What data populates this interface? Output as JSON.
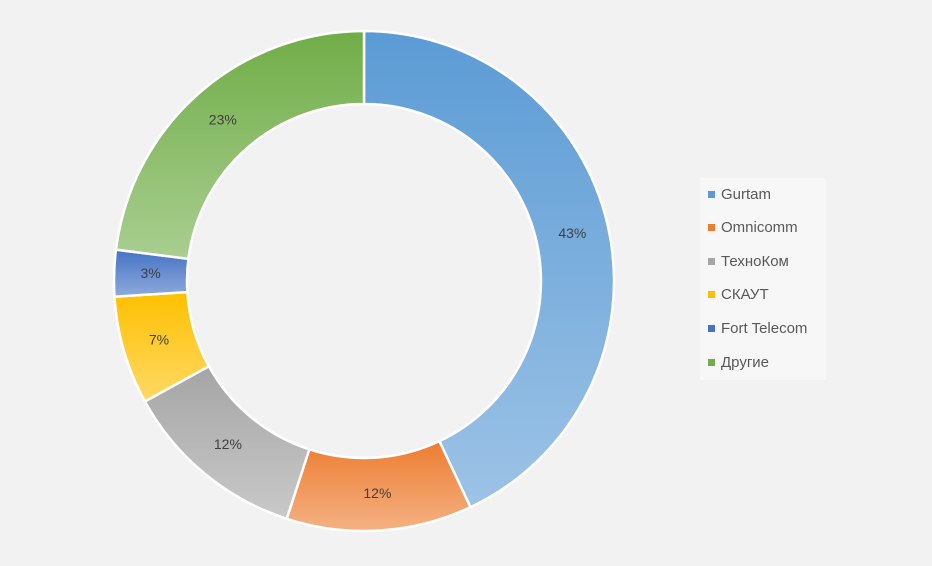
{
  "chart_data": {
    "type": "pie",
    "variant": "donut",
    "title": "",
    "legend_position": "right",
    "slices": [
      {
        "name": "Gurtam",
        "value": 43,
        "label": "43%",
        "color": "#5b9bd5"
      },
      {
        "name": "Omnicomm",
        "value": 12,
        "label": "12%",
        "color": "#ed7d31"
      },
      {
        "name": "ТехноКом",
        "value": 12,
        "label": "12%",
        "color": "#a5a5a5"
      },
      {
        "name": "СКАУТ",
        "value": 7,
        "label": "7%",
        "color": "#ffc000"
      },
      {
        "name": "Fort Telecom",
        "value": 3,
        "label": "3%",
        "color": "#4472c4"
      },
      {
        "name": "Другие",
        "value": 23,
        "label": "23%",
        "color": "#70ad47"
      }
    ]
  },
  "colors": {
    "background": "#f2f2f2",
    "legend_background": "#f7f7f7",
    "label_text": "#404040",
    "legend_text": "#595959",
    "slice_border": "#ffffff"
  }
}
